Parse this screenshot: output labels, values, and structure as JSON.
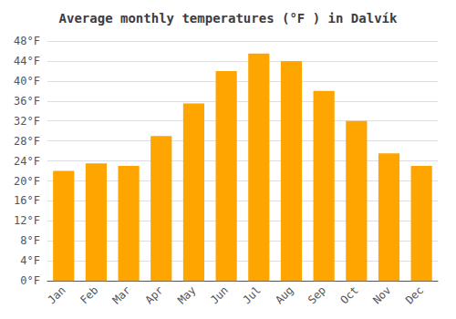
{
  "chart_data": {
    "type": "bar",
    "title": "Average monthly temperatures (°F ) in Dalvík",
    "categories": [
      "Jan",
      "Feb",
      "Mar",
      "Apr",
      "May",
      "Jun",
      "Jul",
      "Aug",
      "Sep",
      "Oct",
      "Nov",
      "Dec"
    ],
    "values": [
      22,
      23.5,
      23,
      29,
      35.5,
      42,
      45.5,
      44,
      38,
      32,
      25.5,
      23
    ],
    "color": "#FFA500",
    "ylim": [
      0,
      48
    ],
    "yticks": [
      {
        "value": 0,
        "label": "0°F"
      },
      {
        "value": 4,
        "label": "4°F"
      },
      {
        "value": 8,
        "label": "8°F"
      },
      {
        "value": 12,
        "label": "12°F"
      },
      {
        "value": 16,
        "label": "16°F"
      },
      {
        "value": 20,
        "label": "20°F"
      },
      {
        "value": 24,
        "label": "24°F"
      },
      {
        "value": 28,
        "label": "28°F"
      },
      {
        "value": 32,
        "label": "32°F"
      },
      {
        "value": 36,
        "label": "36°F"
      },
      {
        "value": 40,
        "label": "40°F"
      },
      {
        "value": 44,
        "label": "44°F"
      },
      {
        "value": 48,
        "label": "48°F"
      }
    ],
    "grid": true
  }
}
